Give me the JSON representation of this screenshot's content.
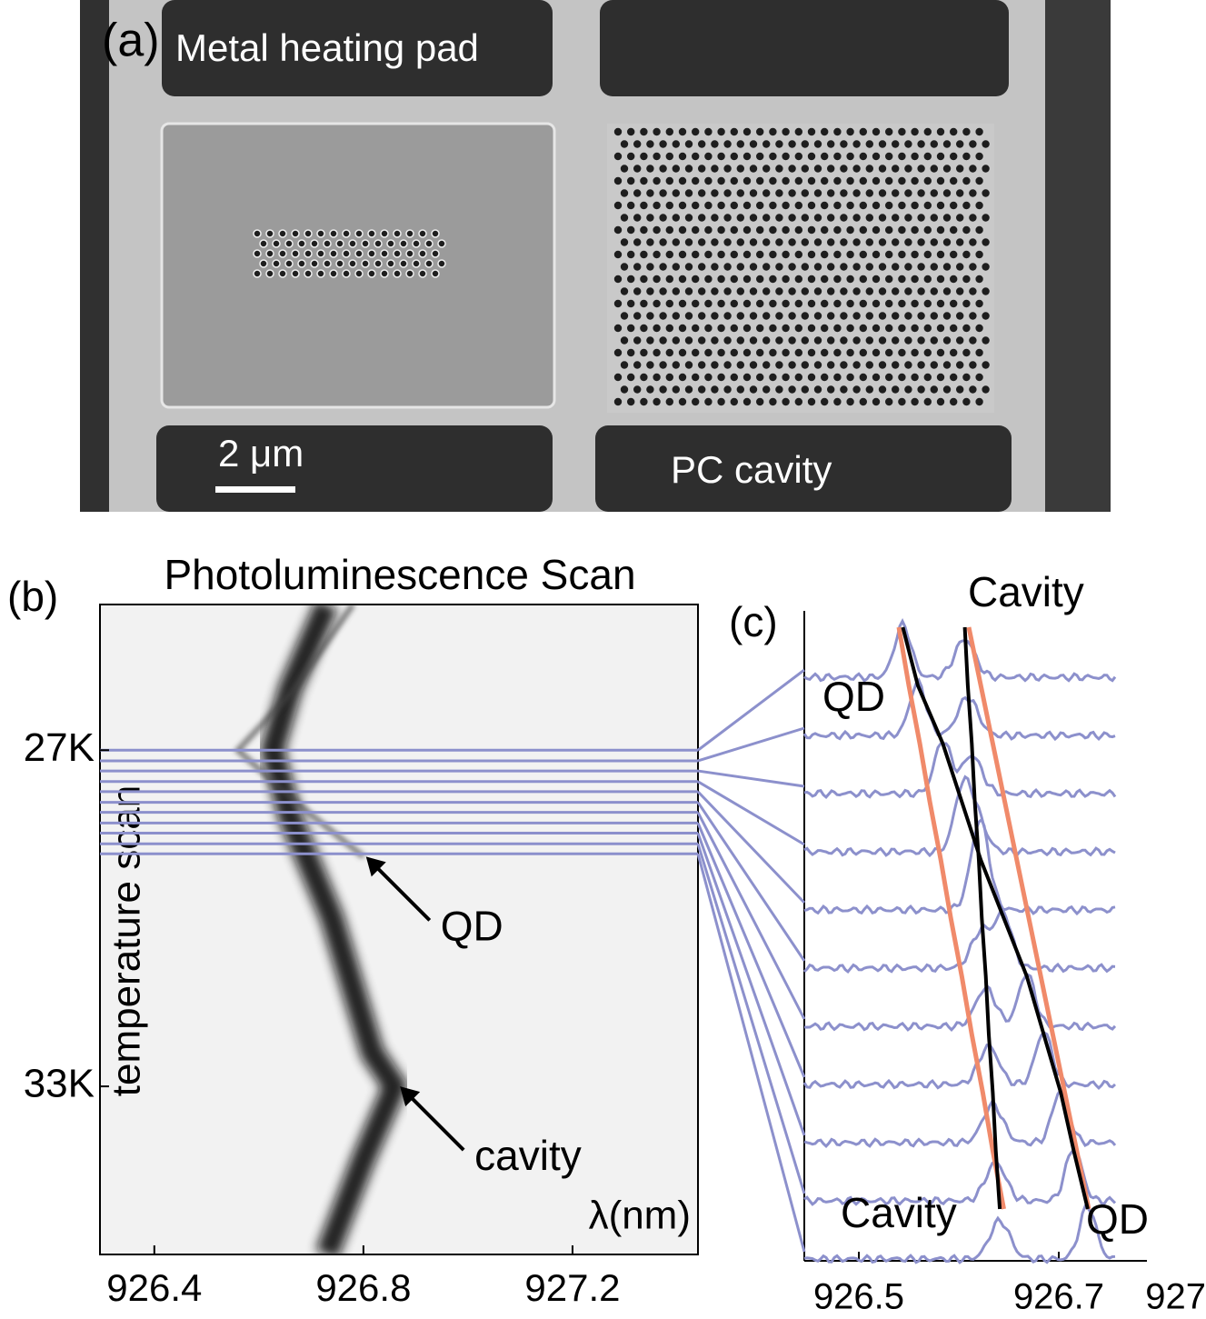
{
  "panel_a": {
    "label": "(a)",
    "pad_label": "Metal heating pad",
    "scale_label": "2 μm",
    "cavity_label": "PC cavity"
  },
  "chart_data": [
    {
      "type": "heatmap",
      "label": "(b)",
      "title": "Photoluminescence Scan",
      "y_label": "temperature scan",
      "x_label": "λ(nm)",
      "xlim": [
        926.296,
        927.44
      ],
      "xticks": [
        926.4,
        926.8,
        927.2
      ],
      "ylim": [
        24.4,
        36.0
      ],
      "yticks": [
        {
          "value": 27,
          "label": "27K"
        },
        {
          "value": 33,
          "label": "33K"
        }
      ],
      "cavity_trace": {
        "temperature": [
          24.4,
          25.9,
          27,
          28.2,
          30,
          32.4,
          33,
          34.3,
          36
        ],
        "wavelength": [
          926.73,
          926.66,
          926.626,
          926.66,
          926.74,
          926.817,
          926.86,
          926.8,
          926.73
        ]
      },
      "qd_trace": {
        "temperature": [
          24.4,
          26,
          27,
          28,
          28.9
        ],
        "wavelength": [
          926.78,
          926.66,
          926.56,
          926.68,
          926.8
        ]
      },
      "scan_lines": [
        27.0,
        27.19,
        27.37,
        27.56,
        27.74,
        27.93,
        28.11,
        28.3,
        28.48,
        28.67,
        28.85
      ],
      "line_color": "#8c90cc",
      "annotations": [
        {
          "text": "QD",
          "temperature": 28.9,
          "wavelength": 926.805
        },
        {
          "text": "cavity",
          "temperature": 33.0,
          "wavelength": 926.87
        }
      ]
    },
    {
      "type": "spectra",
      "label": "(c)",
      "xlim": [
        926.45,
        926.8
      ],
      "xticks": [
        926.5,
        926.7
      ],
      "axis_end_label": "927",
      "qd_peak": [
        926.544,
        926.559,
        926.584,
        926.603,
        926.622,
        926.645,
        926.668,
        926.685,
        926.702,
        926.715,
        926.729
      ],
      "cavity_peak": [
        926.606,
        926.609,
        926.613,
        926.616,
        926.62,
        926.623,
        926.627,
        926.63,
        926.634,
        926.637,
        926.641
      ],
      "uncoupled_a": [
        926.54,
        926.55,
        926.561,
        926.571,
        926.582,
        926.592,
        926.603,
        926.613,
        926.624,
        926.634,
        926.645
      ],
      "uncoupled_b": [
        926.61,
        926.622,
        926.634,
        926.646,
        926.658,
        926.67,
        926.682,
        926.694,
        926.706,
        926.718,
        926.73
      ],
      "trace_color": "#8c90cc",
      "fit_color": "#000000",
      "uncoupled_color": "#f08a6a",
      "annotations": [
        "Cavity",
        "QD",
        "Cavity",
        "QD"
      ]
    }
  ]
}
